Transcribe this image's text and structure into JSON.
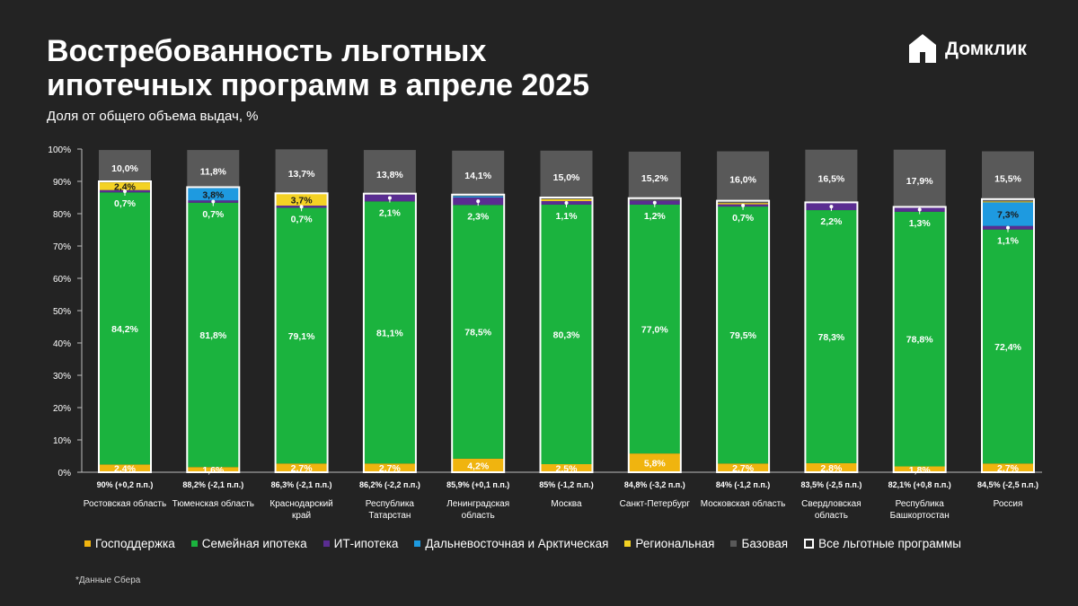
{
  "header": {
    "title_line1": "Востребованность льготных",
    "title_line2": "ипотечных программ в апреле 2025",
    "subtitle": "Доля от общего объема выдач, %"
  },
  "logo": {
    "text": "Домклик",
    "icon": "house-icon"
  },
  "footnote": "*Данные Сбера",
  "colors": {
    "gospodderzhka": "#f0b40f",
    "family": "#1bb33e",
    "it": "#5a2d91",
    "fareast": "#1e9ae0",
    "regional": "#f4d224",
    "base": "#595959",
    "total": "#ffffff"
  },
  "chart_data": {
    "type": "bar",
    "stacked": true,
    "ylim": [
      0,
      100
    ],
    "yticks": [
      "0%",
      "10%",
      "20%",
      "30%",
      "40%",
      "50%",
      "60%",
      "70%",
      "80%",
      "90%",
      "100%"
    ],
    "grid": false,
    "legend_position": "bottom",
    "categories": [
      "Ростовская область",
      "Тюменская область",
      "Краснодарский край",
      "Республика Татарстан",
      "Ленинградская область",
      "Москва",
      "Санкт-Петербург",
      "Московская область",
      "Свердловская область",
      "Республика Башкортостан",
      "Россия"
    ],
    "category_lines": [
      [
        "Ростовская область"
      ],
      [
        "Тюменская область"
      ],
      [
        "Краснодарский",
        "край"
      ],
      [
        "Республика",
        "Татарстан"
      ],
      [
        "Ленинградская",
        "область"
      ],
      [
        "Москва"
      ],
      [
        "Санкт-Петербург"
      ],
      [
        "Московская область"
      ],
      [
        "Свердловская",
        "область"
      ],
      [
        "Республика",
        "Башкортостан"
      ],
      [
        "Россия"
      ]
    ],
    "totals_labels": [
      "90% (+0,2 п.п.)",
      "88,2% (-2,1 п.п.)",
      "86,3% (-2,1 п.п.)",
      "86,2% (-2,2 п.п.)",
      "85,9% (+0,1 п.п.)",
      "85% (-1,2 п.п.)",
      "84,8% (-3,2 п.п.)",
      "84% (-1,2 п.п.)",
      "83,5% (-2,5 п.п.)",
      "82,1% (+0,8 п.п.)",
      "84,5% (-2,5 п.п.)"
    ],
    "series": [
      {
        "name": "Господдержка",
        "key": "gospodderzhka",
        "values": [
          2.4,
          1.6,
          2.7,
          2.7,
          4.2,
          2.5,
          5.8,
          2.7,
          2.8,
          1.8,
          2.7
        ],
        "labels": [
          "2,4%",
          "1,6%",
          "2,7%",
          "2,7%",
          "4,2%",
          "2,5%",
          "5,8%",
          "2,7%",
          "2,8%",
          "1,8%",
          "2,7%"
        ],
        "label_color": "#ffffff"
      },
      {
        "name": "Семейная ипотека",
        "key": "family",
        "values": [
          84.2,
          81.8,
          79.1,
          81.1,
          78.5,
          80.3,
          77.0,
          79.5,
          78.3,
          78.8,
          72.4
        ],
        "labels": [
          "84,2%",
          "81,8%",
          "79,1%",
          "81,1%",
          "78,5%",
          "80,3%",
          "77,0%",
          "79,5%",
          "78,3%",
          "78,8%",
          "72,4%"
        ],
        "label_color": "#ffffff"
      },
      {
        "name": "ИТ-ипотека",
        "key": "it",
        "values": [
          0.7,
          0.7,
          0.7,
          2.1,
          2.3,
          1.1,
          1.2,
          0.7,
          2.2,
          1.3,
          1.1
        ],
        "labels": [
          "0,7%",
          "0,7%",
          "0,7%",
          "2,1%",
          "2,3%",
          "1,1%",
          "1,2%",
          "0,7%",
          "2,2%",
          "1,3%",
          "1,1%"
        ],
        "label_color": "#ffffff"
      },
      {
        "name": "Дальневосточная и Арктическая",
        "key": "fareast",
        "values": [
          0,
          3.8,
          0,
          0,
          0.4,
          0,
          0,
          0,
          0,
          0,
          7.3
        ],
        "labels": [
          "",
          "3,8%",
          "",
          "",
          "",
          "",
          "",
          "",
          "",
          "",
          "7,3%"
        ],
        "label_color": "#1a1a1a"
      },
      {
        "name": "Региональная",
        "key": "regional",
        "values": [
          2.4,
          0,
          3.7,
          0,
          0,
          0.6,
          0,
          0.4,
          0,
          0,
          0.3
        ],
        "labels": [
          "2,4%",
          "",
          "3,7%",
          "",
          "",
          "",
          "",
          "",
          "",
          "",
          ""
        ],
        "label_color": "#1a1a1a"
      },
      {
        "name": "Базовая",
        "key": "base",
        "values": [
          10.0,
          11.8,
          13.7,
          13.8,
          14.1,
          15.0,
          15.2,
          16.0,
          16.5,
          17.9,
          15.5
        ],
        "labels": [
          "10,0%",
          "11,8%",
          "13,7%",
          "13,8%",
          "14,1%",
          "15,0%",
          "15,2%",
          "16,0%",
          "16,5%",
          "17,9%",
          "15,5%"
        ],
        "label_color": "#ffffff"
      }
    ],
    "total_series": {
      "name": "Все льготные программы",
      "values": [
        90,
        88.2,
        86.3,
        86.2,
        85.9,
        85,
        84.8,
        84,
        83.5,
        82.1,
        84.5
      ]
    }
  }
}
